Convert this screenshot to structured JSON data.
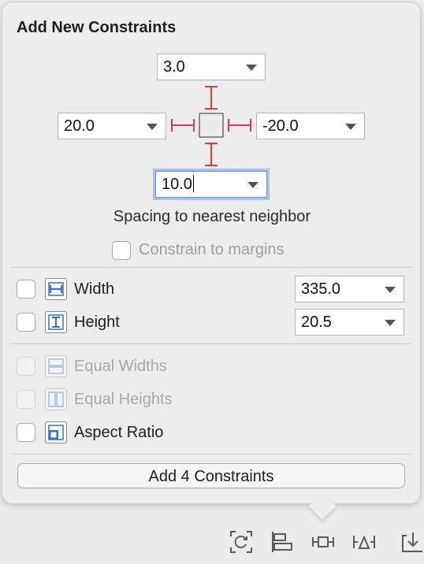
{
  "panel": {
    "title": "Add New Constraints",
    "top_value": "3.0",
    "left_value": "20.0",
    "right_value": "-20.0",
    "bottom_value": "10.0",
    "spacing_caption": "Spacing to nearest neighbor",
    "constrain_margins_label": "Constrain to margins",
    "constrain_margins_checked": false
  },
  "size": {
    "width_label": "Width",
    "width_value": "335.0",
    "width_checked": false,
    "height_label": "Height",
    "height_value": "20.5",
    "height_checked": false
  },
  "equal": {
    "equal_widths_label": "Equal Widths",
    "equal_widths_enabled": false,
    "equal_heights_label": "Equal Heights",
    "equal_heights_enabled": false,
    "aspect_ratio_label": "Aspect Ratio",
    "aspect_ratio_checked": false
  },
  "add_button_label": "Add 4 Constraints",
  "colors": {
    "strut_red": "#e03a3a",
    "icon_blue": "#2f6fd6",
    "focus_ring": "#a9c1f2"
  },
  "toolbar_icons": [
    "update-frames-icon",
    "align-icon",
    "add-constraints-icon",
    "resolve-issues-icon",
    "embed-in-icon"
  ]
}
